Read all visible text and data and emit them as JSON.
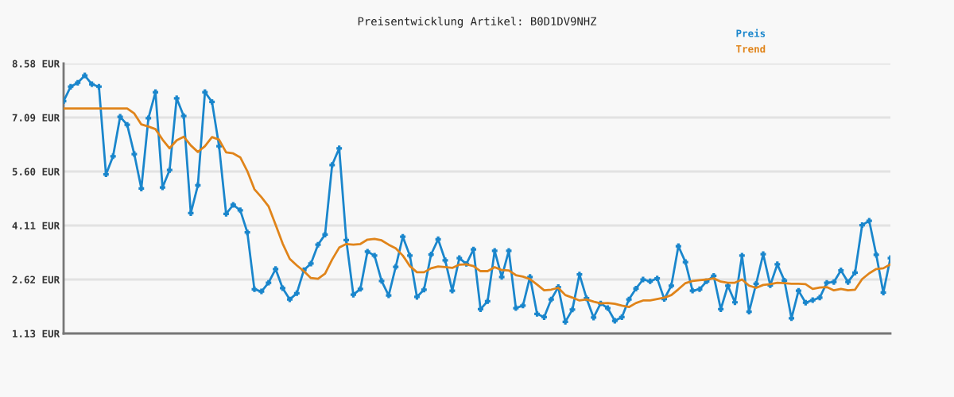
{
  "chart_data": {
    "type": "line",
    "title": "Preisentwicklung Artikel: B0D1DV9NHZ",
    "categories": [
      null,
      null,
      null,
      null,
      null,
      null,
      null,
      null,
      null,
      null,
      null,
      null,
      null,
      null,
      null,
      null,
      null,
      null,
      null,
      null,
      null,
      null,
      null,
      null,
      null,
      null,
      null,
      null,
      null,
      null,
      null,
      null,
      null,
      null,
      null,
      null,
      null,
      null,
      null,
      null,
      null,
      null,
      null,
      null,
      null,
      null,
      null,
      null,
      null,
      null,
      null,
      null,
      null,
      null,
      null,
      null,
      null,
      null,
      null,
      null,
      null,
      null,
      null,
      null,
      null,
      null,
      null,
      null,
      null,
      null,
      null,
      null,
      null,
      null,
      null,
      null,
      null,
      null,
      null,
      null,
      null,
      null,
      null,
      null,
      null,
      null,
      null,
      null,
      null,
      null,
      null,
      null,
      null,
      null,
      null,
      null,
      null,
      null,
      null,
      null,
      null,
      null,
      null,
      null,
      null,
      null,
      null,
      null,
      null,
      null,
      null,
      null,
      null,
      null,
      null,
      null,
      null,
      null
    ],
    "series": [
      {
        "name": "Preis",
        "color": "#1a86cc",
        "marker": "cross",
        "values": [
          7.54,
          7.94,
          8.05,
          8.25,
          8.01,
          7.94,
          5.52,
          6.02,
          7.11,
          6.89,
          6.08,
          5.13,
          7.07,
          7.79,
          5.16,
          5.64,
          7.62,
          7.13,
          4.45,
          5.22,
          7.79,
          7.52,
          6.3,
          4.43,
          4.68,
          4.53,
          3.92,
          2.35,
          2.29,
          2.53,
          2.91,
          2.38,
          2.07,
          2.24,
          2.88,
          3.06,
          3.58,
          3.86,
          5.78,
          6.24,
          3.71,
          2.2,
          2.36,
          3.39,
          3.28,
          2.58,
          2.18,
          2.97,
          3.8,
          3.28,
          2.14,
          2.34,
          3.31,
          3.73,
          3.15,
          2.31,
          3.21,
          3.05,
          3.45,
          1.8,
          2.02,
          3.41,
          2.69,
          3.41,
          1.83,
          1.9,
          2.69,
          1.67,
          1.58,
          2.07,
          2.41,
          1.45,
          1.79,
          2.76,
          2.1,
          1.57,
          1.96,
          1.83,
          1.48,
          1.58,
          2.07,
          2.37,
          2.62,
          2.57,
          2.65,
          2.08,
          2.45,
          3.54,
          3.1,
          2.31,
          2.35,
          2.57,
          2.72,
          1.8,
          2.45,
          1.99,
          3.28,
          1.73,
          2.5,
          3.32,
          2.46,
          3.04,
          2.59,
          1.55,
          2.31,
          1.98,
          2.05,
          2.12,
          2.53,
          2.55,
          2.87,
          2.55,
          2.81,
          4.12,
          4.24,
          3.3,
          2.26,
          3.21
        ]
      },
      {
        "name": "Trend",
        "color": "#e0841a",
        "marker": "none",
        "values": [
          7.34,
          7.34,
          7.34,
          7.34,
          7.34,
          7.34,
          7.34,
          7.34,
          7.34,
          7.34,
          7.2,
          6.9,
          6.84,
          6.77,
          6.48,
          6.24,
          6.46,
          6.56,
          6.32,
          6.14,
          6.3,
          6.55,
          6.48,
          6.13,
          6.1,
          5.99,
          5.61,
          5.11,
          4.89,
          4.64,
          4.13,
          3.61,
          3.19,
          3.01,
          2.85,
          2.66,
          2.64,
          2.78,
          3.17,
          3.5,
          3.6,
          3.58,
          3.6,
          3.72,
          3.74,
          3.7,
          3.58,
          3.48,
          3.28,
          2.99,
          2.82,
          2.82,
          2.93,
          2.98,
          2.96,
          2.94,
          3.03,
          3.04,
          2.99,
          2.85,
          2.85,
          2.96,
          2.88,
          2.87,
          2.74,
          2.7,
          2.63,
          2.48,
          2.32,
          2.34,
          2.39,
          2.19,
          2.12,
          2.04,
          2.07,
          2.01,
          1.96,
          1.97,
          1.95,
          1.9,
          1.86,
          1.97,
          2.04,
          2.04,
          2.08,
          2.12,
          2.19,
          2.35,
          2.52,
          2.58,
          2.6,
          2.62,
          2.65,
          2.56,
          2.53,
          2.53,
          2.62,
          2.45,
          2.39,
          2.47,
          2.49,
          2.53,
          2.52,
          2.5,
          2.5,
          2.49,
          2.36,
          2.4,
          2.41,
          2.32,
          2.36,
          2.32,
          2.34,
          2.63,
          2.79,
          2.91,
          2.93,
          3.04
        ]
      }
    ],
    "ylim": [
      1.13,
      8.58
    ],
    "yticks": [
      {
        "value": 1.13,
        "label": "1.13 EUR"
      },
      {
        "value": 2.62,
        "label": "2.62 EUR"
      },
      {
        "value": 4.11,
        "label": "4.11 EUR"
      },
      {
        "value": 5.6,
        "label": "5.60 EUR"
      },
      {
        "value": 7.09,
        "label": "7.09 EUR"
      },
      {
        "value": 8.58,
        "label": "8.58 EUR"
      }
    ],
    "grid": "y",
    "legend": "top right",
    "tick_labels": "y"
  }
}
